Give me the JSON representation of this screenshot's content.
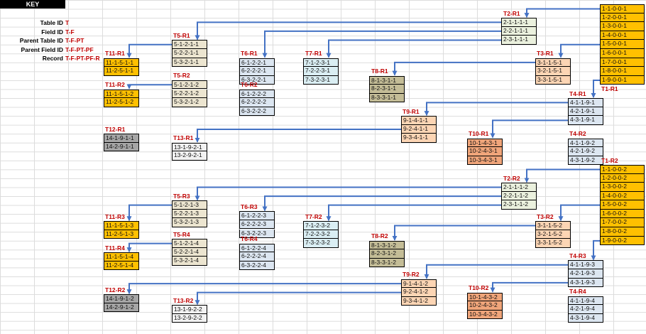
{
  "key": {
    "title": "KEY",
    "rows": [
      {
        "label": "Table ID",
        "value": "T"
      },
      {
        "label": "Field ID",
        "value": "T-F"
      },
      {
        "label": "Parent Table ID",
        "value": "T-F-PT"
      },
      {
        "label": "Parent Field ID",
        "value": "T-F-PT-PF"
      },
      {
        "label": "Record",
        "value": "T-F-PT-PF-R"
      }
    ]
  },
  "colors": {
    "yellow": "#ffc000",
    "orange": "#fcd5b4",
    "green": "#ebf1de",
    "tan": "#ece5d0",
    "blue": "#daeef3",
    "olive": "#c4bd97",
    "salmon": "#f0a57a",
    "lav": "#dce6f1",
    "grey": "#a6a6a6",
    "pale": "#f2f2f2",
    "line": "#4472c4"
  },
  "groups": [
    {
      "label": "T1-R1",
      "color": "yellow",
      "cells": [
        "1-1-0-0-1",
        "1-2-0-0-1",
        "1-3-0-0-1",
        "1-4-0-0-1",
        "1-5-0-0-1",
        "1-6-0-0-1",
        "1-7-0-0-1",
        "1-8-0-0-1",
        "1-9-0-0-1"
      ]
    },
    {
      "label": "T2-R1",
      "color": "green",
      "cells": [
        "2-1-1-1-1",
        "2-2-1-1-1",
        "2-3-1-1-1"
      ]
    },
    {
      "label": "T3-R1",
      "color": "orange",
      "cells": [
        "3-1-1-5-1",
        "3-2-1-5-1",
        "3-3-1-5-1"
      ]
    },
    {
      "label": "T4-R1",
      "color": "lav",
      "cells": [
        "4-1-1-9-1",
        "4-2-1-9-1",
        "4-3-1-9-1"
      ]
    },
    {
      "label": "T4-R2",
      "color": "lav",
      "cells": [
        "4-1-1-9-2",
        "4-2-1-9-2",
        "4-3-1-9-2"
      ]
    },
    {
      "label": "T5-R1",
      "color": "tan",
      "cells": [
        "5-1-2-1-1",
        "5-2-2-1-1",
        "5-3-2-1-1"
      ]
    },
    {
      "label": "T5-R2",
      "color": "tan",
      "cells": [
        "5-1-2-1-2",
        "5-2-2-1-2",
        "5-3-2-1-2"
      ]
    },
    {
      "label": "T6-R1",
      "color": "lav",
      "cells": [
        "6-1-2-2-1",
        "6-2-2-2-1",
        "6-3-2-2-1"
      ]
    },
    {
      "label": "T6-R2",
      "color": "lav",
      "cells": [
        "6-1-2-2-2",
        "6-2-2-2-2",
        "6-3-2-2-2"
      ]
    },
    {
      "label": "T7-R1",
      "color": "blue",
      "cells": [
        "7-1-2-3-1",
        "7-2-2-3-1",
        "7-3-2-3-1"
      ]
    },
    {
      "label": "T8-R1",
      "color": "olive",
      "cells": [
        "8-1-3-1-1",
        "8-2-3-1-1",
        "8-3-3-1-1"
      ]
    },
    {
      "label": "T9-R1",
      "color": "orange",
      "cells": [
        "9-1-4-1-1",
        "9-2-4-1-1",
        "9-3-4-1-1"
      ]
    },
    {
      "label": "T10-R1",
      "color": "salmon",
      "cells": [
        "10-1-4-3-1",
        "10-2-4-3-1",
        "10-3-4-3-1"
      ]
    },
    {
      "label": "T11-R1",
      "color": "yellow",
      "cells": [
        "11-1-5-1-1",
        "11-2-5-1-1"
      ]
    },
    {
      "label": "T11-R2",
      "color": "yellow",
      "cells": [
        "11-1-5-1-2",
        "11-2-5-1-2"
      ]
    },
    {
      "label": "T12-R1",
      "color": "grey",
      "cells": [
        "14-1-9-1-1",
        "14-2-9-1-1"
      ]
    },
    {
      "label": "T13-R1",
      "color": "pale",
      "cells": [
        "13-1-9-2-1",
        "13-2-9-2-1"
      ]
    },
    {
      "label": "T1-R2",
      "color": "yellow",
      "cells": [
        "1-1-0-0-2",
        "1-2-0-0-2",
        "1-3-0-0-2",
        "1-4-0-0-2",
        "1-5-0-0-2",
        "1-6-0-0-2",
        "1-7-0-0-2",
        "1-8-0-0-2",
        "1-9-0-0-2"
      ]
    },
    {
      "label": "T2-R2",
      "color": "green",
      "cells": [
        "2-1-1-1-2",
        "2-2-1-1-2",
        "2-3-1-1-2"
      ]
    },
    {
      "label": "T3-R2",
      "color": "orange",
      "cells": [
        "3-1-1-5-2",
        "3-2-1-5-2",
        "3-3-1-5-2"
      ]
    },
    {
      "label": "T4-R3",
      "color": "lav",
      "cells": [
        "4-1-1-9-3",
        "4-2-1-9-3",
        "4-3-1-9-3"
      ]
    },
    {
      "label": "T4-R4",
      "color": "lav",
      "cells": [
        "4-1-1-9-4",
        "4-2-1-9-4",
        "4-3-1-9-4"
      ]
    },
    {
      "label": "T5-R3",
      "color": "tan",
      "cells": [
        "5-1-2-1-3",
        "5-2-2-1-3",
        "5-3-2-1-3"
      ]
    },
    {
      "label": "T5-R4",
      "color": "tan",
      "cells": [
        "5-1-2-1-4",
        "5-2-2-1-4",
        "5-3-2-1-4"
      ]
    },
    {
      "label": "T6-R3",
      "color": "lav",
      "cells": [
        "6-1-2-2-3",
        "6-2-2-2-3",
        "6-3-2-2-3"
      ]
    },
    {
      "label": "T6-R4",
      "color": "lav",
      "cells": [
        "6-1-2-2-4",
        "6-2-2-2-4",
        "6-3-2-2-4"
      ]
    },
    {
      "label": "T7-R2",
      "color": "blue",
      "cells": [
        "7-1-2-3-2",
        "7-2-2-3-2",
        "7-3-2-3-2"
      ]
    },
    {
      "label": "T8-R2",
      "color": "olive",
      "cells": [
        "8-1-3-1-2",
        "8-2-3-1-2",
        "8-3-3-1-2"
      ]
    },
    {
      "label": "T9-R2",
      "color": "orange",
      "cells": [
        "9-1-4-1-2",
        "9-2-4-1-2",
        "9-3-4-1-2"
      ]
    },
    {
      "label": "T10-R2",
      "color": "salmon",
      "cells": [
        "10-1-4-3-2",
        "10-2-4-3-2",
        "10-3-4-3-2"
      ]
    },
    {
      "label": "T11-R3",
      "color": "yellow",
      "cells": [
        "11-1-5-1-3",
        "11-2-5-1-3"
      ]
    },
    {
      "label": "T11-R4",
      "color": "yellow",
      "cells": [
        "11-1-5-1-4",
        "11-2-5-1-4"
      ]
    },
    {
      "label": "T12-R2",
      "color": "grey",
      "cells": [
        "14-1-9-1-2",
        "14-2-9-1-2"
      ]
    },
    {
      "label": "T13-R2",
      "color": "pale",
      "cells": [
        "13-1-9-2-2",
        "13-2-9-2-2"
      ]
    }
  ],
  "links": [
    {
      "from": "1-1-0-0-1",
      "to": "T2-R1"
    },
    {
      "from": "2-1-1-1-1",
      "to": "T5-R1"
    },
    {
      "from": "2-2-1-1-1",
      "to": "T6-R1"
    },
    {
      "from": "2-3-1-1-1",
      "to": "T7-R1"
    },
    {
      "from": "1-5-0-0-1",
      "to": "T3-R1"
    },
    {
      "from": "5-1-2-1-1",
      "to": "T11-R1"
    },
    {
      "from": "5-1-2-1-2",
      "to": "T11-R2"
    },
    {
      "from": "3-1-1-5-1",
      "to": "T8-R1"
    },
    {
      "from": "1-9-0-0-1",
      "to": "T4-R1"
    },
    {
      "from": "4-1-1-9-1",
      "to": "T9-R1"
    },
    {
      "from": "4-3-1-9-1",
      "to": "T10-R1"
    },
    {
      "from": "9-2-4-1-1",
      "to": "T13-R1"
    },
    {
      "from": "1-1-0-0-2",
      "to": "T2-R2"
    },
    {
      "from": "2-1-1-1-2",
      "to": "T5-R3"
    },
    {
      "from": "2-2-1-1-2",
      "to": "T6-R3"
    },
    {
      "from": "2-3-1-1-2",
      "to": "T7-R2"
    },
    {
      "from": "1-5-0-0-2",
      "to": "T3-R2"
    },
    {
      "from": "5-1-2-1-3",
      "to": "T11-R3"
    },
    {
      "from": "5-1-2-1-4",
      "to": "T11-R4"
    },
    {
      "from": "3-1-1-5-2",
      "to": "T8-R2"
    },
    {
      "from": "1-9-0-0-2",
      "to": "T4-R3"
    },
    {
      "from": "4-1-1-9-3",
      "to": "T9-R2"
    },
    {
      "from": "9-1-4-1-2",
      "to": "T12-R2"
    },
    {
      "from": "4-3-1-9-3",
      "to": "T10-R2"
    },
    {
      "from": "9-2-4-1-2",
      "to": "T13-R2"
    }
  ]
}
